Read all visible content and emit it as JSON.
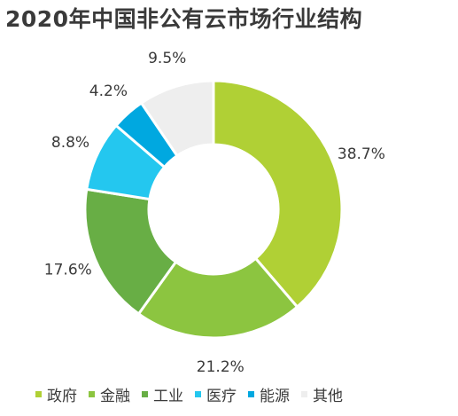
{
  "chart_data": {
    "type": "pie",
    "variant": "donut",
    "title": "2020年中国非公有云市场行业结构",
    "categories": [
      "政府",
      "金融",
      "工业",
      "医疗",
      "能源",
      "其他"
    ],
    "values": [
      38.7,
      21.2,
      17.6,
      8.8,
      4.2,
      9.5
    ],
    "value_labels": [
      "38.7%",
      "21.2%",
      "17.6%",
      "8.8%",
      "4.2%",
      "9.5%"
    ],
    "colors": [
      "#b0d035",
      "#8cc540",
      "#68ae45",
      "#24c7ef",
      "#00a8e0",
      "#eeeeee"
    ],
    "legend_position": "bottom"
  }
}
